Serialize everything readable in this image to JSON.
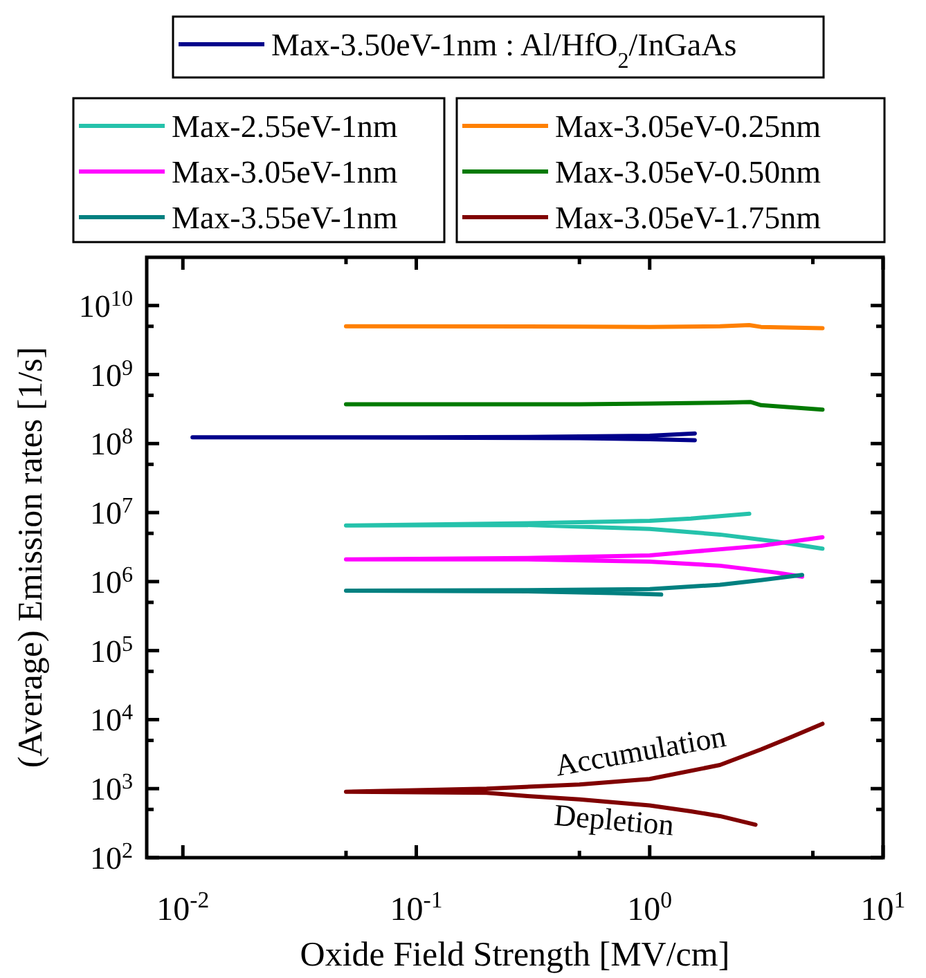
{
  "chart_data": {
    "type": "line",
    "log": "xy",
    "legend": "top",
    "xlabel": "Oxide Field Strength [MV/cm]",
    "ylabel": "(Average) Emission rates [1/s]",
    "xlim": [
      0.007,
      10
    ],
    "ylim": [
      100,
      50000000000
    ],
    "xticks": [
      {
        "value": 0.01,
        "label": "10$^{-2}$"
      },
      {
        "value": 0.05,
        "label": null
      },
      {
        "value": 0.1,
        "label": "10$^{-1}$"
      },
      {
        "value": 0.5,
        "label": null
      },
      {
        "value": 1,
        "label": "10$^{0}$"
      },
      {
        "value": 5,
        "label": null
      },
      {
        "value": 10,
        "label": "10$^{1}$"
      }
    ],
    "yticks": [
      {
        "value": 100,
        "label": "10$^{2}$"
      },
      {
        "value": 500,
        "label": null
      },
      {
        "value": 1000,
        "label": "10$^{3}$"
      },
      {
        "value": 5000,
        "label": null
      },
      {
        "value": 10000,
        "label": "10$^{4}$"
      },
      {
        "value": 50000,
        "label": null
      },
      {
        "value": 100000,
        "label": "10$^{5}$"
      },
      {
        "value": 500000,
        "label": null
      },
      {
        "value": 1000000,
        "label": "10$^{6}$"
      },
      {
        "value": 5000000,
        "label": null
      },
      {
        "value": 10000000,
        "label": "10$^{7}$"
      },
      {
        "value": 50000000,
        "label": null
      },
      {
        "value": 100000000,
        "label": "10$^{8}$"
      },
      {
        "value": 500000000,
        "label": null
      },
      {
        "value": 1000000000,
        "label": "10$^{9}$"
      },
      {
        "value": 5000000000,
        "label": null
      },
      {
        "value": 10000000000,
        "label": "10$^{10}$"
      }
    ],
    "series": [
      {
        "name": "Max-3.50eV-1nm : Al/HfO$_{2}$/InGaAs",
        "color": "#00008b",
        "x": [
          1.56,
          1.0,
          0.3,
          0.1,
          0.011,
          0.1,
          0.5,
          1.0,
          1.56
        ],
        "values": [
          140000000,
          130000000,
          125000000,
          123000000,
          123000000,
          122000000,
          120000000,
          116000000,
          112000000
        ]
      },
      {
        "name": "Max-2.55eV-1nm",
        "color": "#25c2ab",
        "x": [
          2.67,
          1.5,
          1.0,
          0.3,
          0.05,
          0.3,
          1.0,
          2.0,
          3.5,
          5.5
        ],
        "values": [
          9600000,
          8200000,
          7600000,
          7000000,
          6500000,
          6600000,
          5800000,
          4800000,
          3800000,
          3000000
        ]
      },
      {
        "name": "Max-3.05eV-1nm",
        "color": "#ff00ff",
        "x": [
          5.5,
          3.0,
          1.5,
          1.0,
          0.3,
          0.05,
          0.3,
          1.0,
          2.0,
          3.5,
          4.5
        ],
        "values": [
          4400000,
          3300000,
          2700000,
          2400000,
          2200000,
          2100000,
          2100000,
          1950000,
          1700000,
          1350000,
          1180000
        ]
      },
      {
        "name": "Max-3.55eV-1nm",
        "color": "#008080",
        "x": [
          4.5,
          3.0,
          2.0,
          1.0,
          0.3,
          0.05,
          0.3,
          0.7,
          1.12
        ],
        "values": [
          1250000,
          1050000,
          900000,
          780000,
          750000,
          740000,
          720000,
          680000,
          650000
        ]
      },
      {
        "name": "Max-3.05eV-0.25nm",
        "color": "#ff8000",
        "x": [
          0.05,
          0.5,
          1.0,
          2.0,
          2.67,
          3.0,
          5.5
        ],
        "values": [
          5000000000,
          4950000000,
          4900000000,
          5000000000,
          5200000000,
          4900000000,
          4700000000
        ]
      },
      {
        "name": "Max-3.05eV-0.50nm",
        "color": "#007a00",
        "x": [
          0.05,
          0.5,
          1.0,
          2.0,
          2.7,
          3.0,
          5.5
        ],
        "values": [
          370000000,
          370000000,
          380000000,
          390000000,
          400000000,
          360000000,
          310000000
        ]
      },
      {
        "name": "Max-3.05eV-1.75nm",
        "color": "#800000",
        "x": [
          5.5,
          4.0,
          3.0,
          2.0,
          1.0,
          0.5,
          0.2,
          0.05,
          0.2,
          0.3,
          0.5,
          1.0,
          1.5,
          2.0,
          2.84
        ],
        "values": [
          8700,
          5500,
          3700,
          2200,
          1380,
          1150,
          1000,
          900,
          870,
          780,
          700,
          570,
          470,
          400,
          300
        ]
      }
    ],
    "annotations": [
      "Accumulation",
      "Depletion"
    ]
  }
}
